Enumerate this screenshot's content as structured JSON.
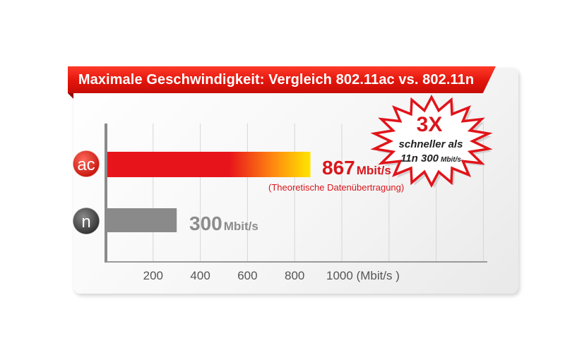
{
  "banner": {
    "title": "Maximale Geschwindigkeit: Vergleich 802.11ac vs. 802.11n"
  },
  "burst": {
    "big": "3X",
    "line1": "schneller als",
    "line2_main": "11n 300",
    "line2_unit": "Mbit/s"
  },
  "colors": {
    "banner_red": "#e2150c",
    "ac_bar_start": "#e8141c",
    "ac_bar_end": "#ffe600",
    "n_bar": "#8a8a8a",
    "label_red": "#d9161c",
    "label_gray": "#8c8c8c"
  },
  "chart_data": {
    "type": "bar",
    "orientation": "horizontal",
    "categories": [
      "ac",
      "n"
    ],
    "values": [
      867,
      300
    ],
    "unit": "Mbit/s",
    "value_labels": [
      {
        "number": "867",
        "unit": "Mbit/s",
        "note": "(Theoretische Datenübertragung)"
      },
      {
        "number": "300",
        "unit": "Mbit/s",
        "note": ""
      }
    ],
    "xticks": [
      "200",
      "400",
      "600",
      "800",
      "1000 (Mbit/s )"
    ],
    "xtick_values": [
      200,
      400,
      600,
      800,
      1000
    ],
    "xlim": [
      0,
      1600
    ],
    "grid": true
  }
}
